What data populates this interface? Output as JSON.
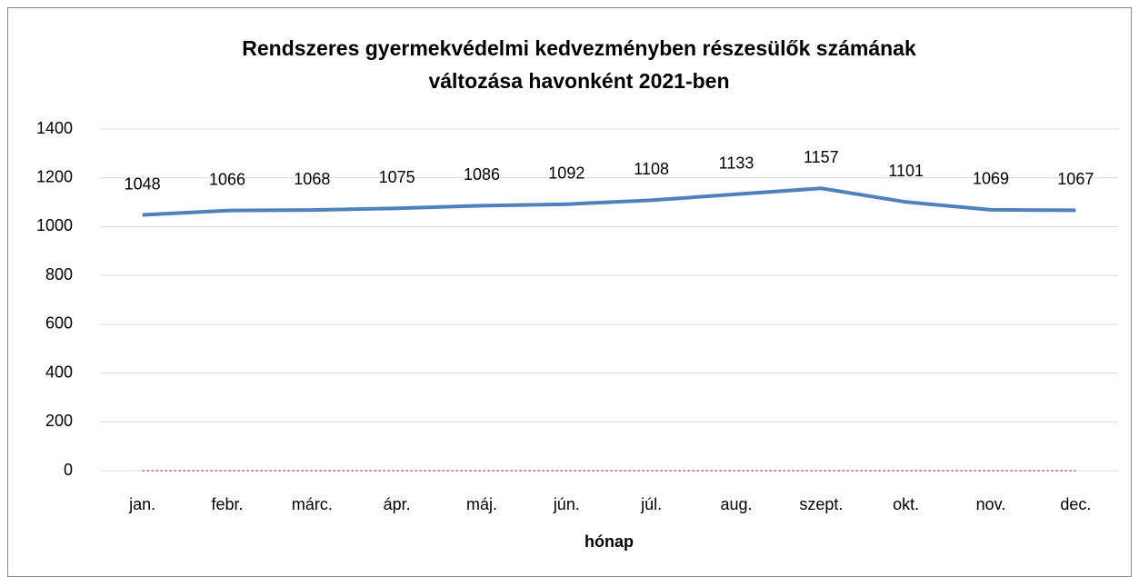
{
  "chart_data": {
    "type": "line",
    "title": [
      "Rendszeres gyermekvédelmi kedvezményben részesülők számának",
      "változása havonként 2021-ben"
    ],
    "x_label": "hónap",
    "categories": [
      "jan.",
      "febr.",
      "márc.",
      "ápr.",
      "máj.",
      "jún.",
      "júl.",
      "aug.",
      "szept.",
      "okt.",
      "nov.",
      "dec."
    ],
    "series": [
      {
        "color": "#4f81bd",
        "values": [
          1048,
          1066,
          1068,
          1075,
          1086,
          1092,
          1108,
          1133,
          1157,
          1101,
          1069,
          1067
        ],
        "data_labels": true
      },
      {
        "color": "#c0504d",
        "dash": "dotted",
        "values": [
          0,
          0,
          0,
          0,
          0,
          0,
          0,
          0,
          0,
          0,
          0,
          0
        ]
      }
    ],
    "ylim": [
      0,
      1400
    ],
    "yticks": [
      0,
      200,
      400,
      600,
      800,
      1000,
      1200,
      1400
    ],
    "grid": true
  }
}
